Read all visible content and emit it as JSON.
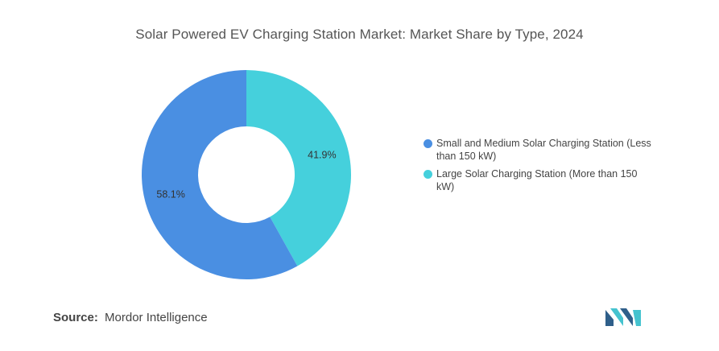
{
  "chart_data": {
    "type": "pie",
    "title": "Solar Powered EV Charging Station Market: Market Share by Type, 2024",
    "donut": true,
    "legend_position": "right",
    "slices": [
      {
        "name": "Small and Medium Solar Charging Station (Less than 150 kW)",
        "value": 58.1,
        "label": "58.1%",
        "color": "#4a8fe2"
      },
      {
        "name": "Large Solar Charging Station (More than 150 kW)",
        "value": 41.9,
        "label": "41.9%",
        "color": "#45d0dc"
      }
    ]
  },
  "footer": {
    "source_label": "Source:",
    "source_value": "Mordor Intelligence"
  },
  "logo": {
    "icon": "mordor-intelligence-logo",
    "colors": [
      "#2f5f8a",
      "#45c3cf"
    ]
  }
}
